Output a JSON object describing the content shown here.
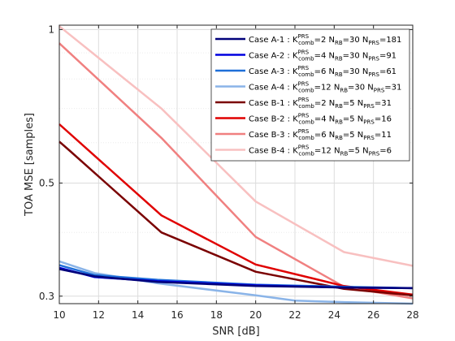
{
  "chart_data": {
    "type": "line",
    "title": "",
    "xlabel": "SNR [dB]",
    "ylabel": "TOA MSE [samples]",
    "xlim": [
      10,
      28
    ],
    "ylim": [
      0.29,
      1.02
    ],
    "yscale": "log",
    "grid": true,
    "legend_position": "top-right",
    "xticks": [
      10,
      12,
      14,
      16,
      18,
      20,
      22,
      24,
      26,
      28
    ],
    "xtick_labels": [
      "10",
      "12",
      "14",
      "16",
      "18",
      "20",
      "22",
      "24",
      "26",
      "28"
    ],
    "yticks": [
      0.3,
      0.5,
      1
    ],
    "ytick_labels": [
      "0.3",
      "0.5",
      "1"
    ],
    "series": [
      {
        "case": "Case A-1",
        "K": "2",
        "NRB": "30",
        "NPRS": "181",
        "color": "#00007a",
        "x": [
          10,
          11.8,
          15,
          20,
          24.5,
          28
        ],
        "y": [
          0.339,
          0.328,
          0.32,
          0.314,
          0.312,
          0.311
        ]
      },
      {
        "case": "Case A-2",
        "K": "4",
        "NRB": "30",
        "NPRS": "91",
        "color": "#0000e0",
        "x": [
          10,
          11.8,
          15,
          20,
          24.5,
          28
        ],
        "y": [
          0.341,
          0.327,
          0.321,
          0.315,
          0.312,
          0.311
        ]
      },
      {
        "case": "Case A-3",
        "K": "6",
        "NRB": "30",
        "NPRS": "61",
        "color": "#1f6fd8",
        "x": [
          10,
          11.8,
          15,
          20,
          24.5,
          28
        ],
        "y": [
          0.345,
          0.33,
          0.323,
          0.316,
          0.313,
          0.311
        ]
      },
      {
        "case": "Case A-4",
        "K": "12",
        "NRB": "30",
        "NPRS": "31",
        "color": "#8ab4e8",
        "x": [
          10,
          11.8,
          15,
          20,
          22,
          24.5,
          28
        ],
        "y": [
          0.351,
          0.333,
          0.318,
          0.301,
          0.294,
          0.292,
          0.29
        ]
      },
      {
        "case": "Case B-1",
        "K": "2",
        "NRB": "5",
        "NPRS": "31",
        "color": "#7a0000",
        "x": [
          10,
          10.5,
          15.2,
          20,
          24.5,
          28
        ],
        "y": [
          0.603,
          0.58,
          0.4,
          0.335,
          0.31,
          0.301
        ]
      },
      {
        "case": "Case B-2",
        "K": "4",
        "NRB": "5",
        "NPRS": "16",
        "color": "#e00000",
        "x": [
          10,
          15.2,
          20,
          24.5,
          28
        ],
        "y": [
          0.652,
          0.432,
          0.346,
          0.314,
          0.302
        ]
      },
      {
        "case": "Case B-3",
        "K": "6",
        "NRB": "5",
        "NPRS": "11",
        "color": "#f08080",
        "x": [
          10,
          15.2,
          20,
          24.5,
          28
        ],
        "y": [
          0.94,
          0.613,
          0.392,
          0.313,
          0.297
        ]
      },
      {
        "case": "Case B-4",
        "K": "12",
        "NRB": "5",
        "NPRS": "6",
        "color": "#f8c0c0",
        "x": [
          10,
          15.2,
          20,
          24.5,
          28
        ],
        "y": [
          1.015,
          0.7,
          0.46,
          0.366,
          0.344
        ]
      }
    ]
  }
}
